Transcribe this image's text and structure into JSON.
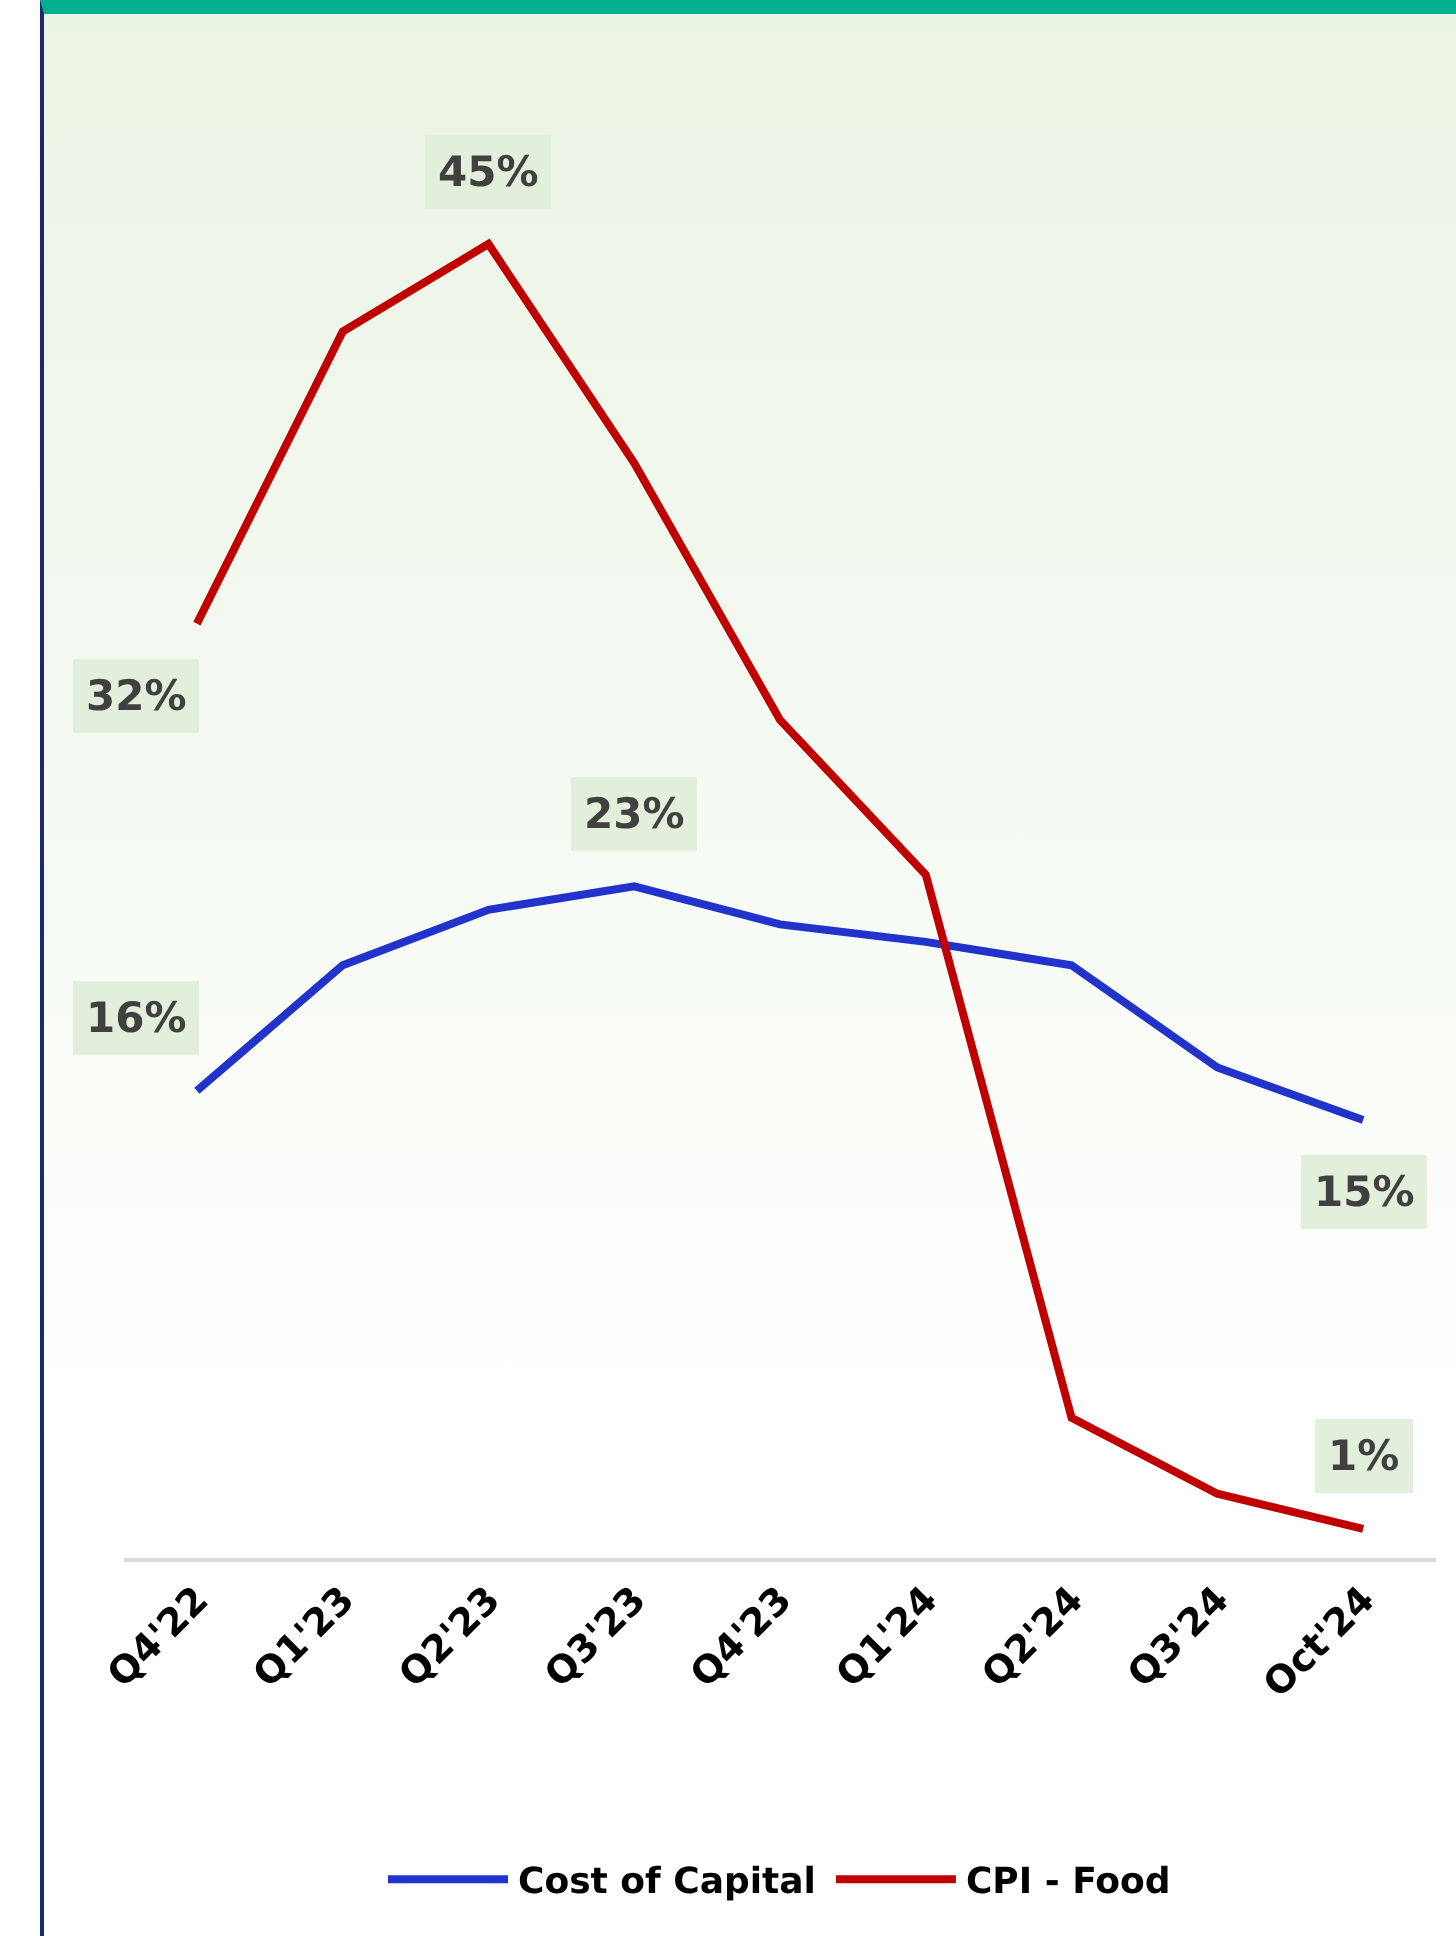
{
  "chart_data": {
    "type": "line",
    "categories": [
      "Q4'22",
      "Q1'23",
      "Q2'23",
      "Q3'23",
      "Q4'23",
      "Q1'24",
      "Q2'24",
      "Q3'24",
      "Oct'24"
    ],
    "series": [
      {
        "name": "Cost of Capital",
        "color": "#2233cc",
        "values": [
          16,
          20.3,
          22.2,
          23,
          21.7,
          21.1,
          20.3,
          16.8,
          15
        ],
        "value_labels": [
          "16%",
          null,
          null,
          "23%",
          null,
          null,
          null,
          null,
          "15%"
        ]
      },
      {
        "name": "CPI - Food",
        "color": "#c00000",
        "values": [
          32,
          42,
          45,
          37.5,
          28.7,
          23.4,
          4.8,
          2.2,
          1
        ],
        "value_labels": [
          "32%",
          null,
          "45%",
          null,
          null,
          null,
          null,
          null,
          "1%"
        ]
      }
    ],
    "tick_labels": "x",
    "grid": false,
    "legend": "bottom",
    "marker": "none",
    "line_style": "solid"
  }
}
